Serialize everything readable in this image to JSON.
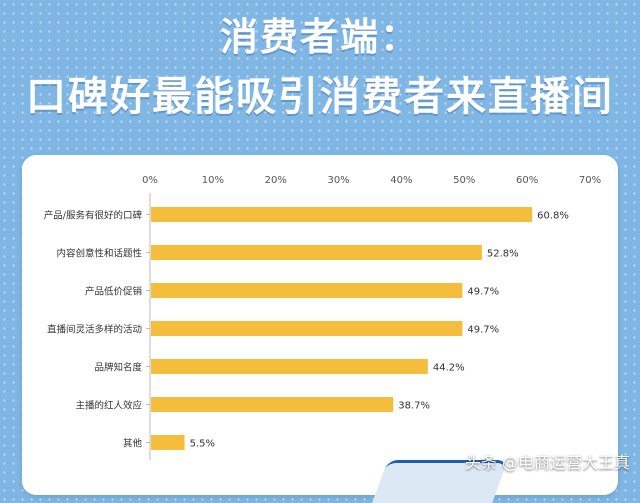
{
  "header": {
    "title_line_1": "消费者端：",
    "title_line_2": "口碑好最能吸引消费者来直播间"
  },
  "watermark": "头条 @电商运营大王真",
  "colors": {
    "background": "#7fb6e4",
    "bar": "#f5bd3c",
    "title": "#ffffff"
  },
  "chart_data": {
    "type": "bar",
    "orientation": "horizontal",
    "categories": [
      "产品/服务有很好的口碑",
      "内容创意性和话题性",
      "产品低价促销",
      "直播间灵活多样的活动",
      "品牌知名度",
      "主播的红人效应",
      "其他"
    ],
    "values": [
      60.8,
      52.8,
      49.7,
      49.7,
      44.2,
      38.7,
      5.5
    ],
    "value_labels": [
      "60.8%",
      "52.8%",
      "49.7%",
      "49.7%",
      "44.2%",
      "38.7%",
      "5.5%"
    ],
    "xlim": [
      0,
      70
    ],
    "x_ticks": [
      0,
      10,
      20,
      30,
      40,
      50,
      60,
      70
    ],
    "x_tick_labels": [
      "0%",
      "10%",
      "20%",
      "30%",
      "40%",
      "50%",
      "60%",
      "70%"
    ],
    "axis_position": "top",
    "grid": false
  }
}
